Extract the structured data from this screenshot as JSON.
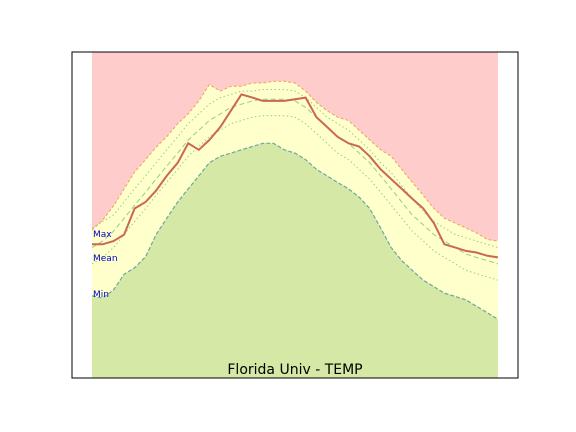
{
  "chart_data": {
    "type": "area",
    "title": "Florida Univ - TEMP",
    "xlabel": "",
    "ylabel": "",
    "xlim": [
      0,
      1
    ],
    "ylim": [
      0,
      1
    ],
    "grid": false,
    "legend": "none",
    "band_labels": {
      "max": "Max",
      "mean": "Mean",
      "min": "Min"
    },
    "colors": {
      "above_max": "#ffcccc",
      "max_to_min": "#ffffcc",
      "below_min": "#d5e8a5",
      "max_line": "#f0a060",
      "min_line": "#6aa9a0",
      "mean_line": "#cc6655",
      "mean_band": "#99cc88",
      "label": "#0000cc"
    },
    "x": [
      0,
      0.026,
      0.053,
      0.079,
      0.105,
      0.132,
      0.158,
      0.184,
      0.211,
      0.237,
      0.263,
      0.289,
      0.316,
      0.342,
      0.368,
      0.395,
      0.421,
      0.447,
      0.474,
      0.5,
      0.526,
      0.553,
      0.579,
      0.605,
      0.632,
      0.658,
      0.684,
      0.711,
      0.737,
      0.763,
      0.789,
      0.816,
      0.842,
      0.868,
      0.895,
      0.921,
      0.947,
      0.974,
      1
    ],
    "series": [
      {
        "name": "max",
        "values": [
          0.454,
          0.484,
          0.528,
          0.58,
          0.632,
          0.67,
          0.708,
          0.74,
          0.78,
          0.81,
          0.85,
          0.9,
          0.88,
          0.895,
          0.895,
          0.905,
          0.905,
          0.91,
          0.91,
          0.905,
          0.88,
          0.845,
          0.82,
          0.8,
          0.79,
          0.76,
          0.73,
          0.7,
          0.68,
          0.64,
          0.6,
          0.56,
          0.52,
          0.49,
          0.475,
          0.46,
          0.445,
          0.425,
          0.42
        ]
      },
      {
        "name": "mean",
        "values": [
          0.41,
          0.41,
          0.42,
          0.44,
          0.52,
          0.54,
          0.575,
          0.62,
          0.66,
          0.72,
          0.7,
          0.73,
          0.77,
          0.82,
          0.87,
          0.86,
          0.85,
          0.85,
          0.85,
          0.855,
          0.86,
          0.8,
          0.77,
          0.74,
          0.72,
          0.71,
          0.68,
          0.64,
          0.61,
          0.58,
          0.55,
          0.52,
          0.475,
          0.41,
          0.4,
          0.39,
          0.385,
          0.375,
          0.37
        ]
      },
      {
        "name": "min",
        "values": [
          0.252,
          0.245,
          0.27,
          0.318,
          0.338,
          0.372,
          0.44,
          0.49,
          0.54,
          0.58,
          0.62,
          0.66,
          0.68,
          0.69,
          0.7,
          0.71,
          0.72,
          0.72,
          0.7,
          0.69,
          0.67,
          0.64,
          0.62,
          0.6,
          0.58,
          0.555,
          0.52,
          0.46,
          0.4,
          0.36,
          0.33,
          0.3,
          0.28,
          0.26,
          0.25,
          0.24,
          0.22,
          0.2,
          0.18
        ]
      },
      {
        "name": "mean_upper",
        "values": [
          0.46,
          0.48,
          0.5,
          0.54,
          0.58,
          0.62,
          0.66,
          0.7,
          0.74,
          0.78,
          0.81,
          0.84,
          0.86,
          0.87,
          0.88,
          0.88,
          0.885,
          0.885,
          0.885,
          0.88,
          0.86,
          0.83,
          0.8,
          0.78,
          0.76,
          0.73,
          0.7,
          0.66,
          0.63,
          0.59,
          0.55,
          0.51,
          0.48,
          0.46,
          0.44,
          0.43,
          0.42,
          0.41,
          0.4
        ]
      },
      {
        "name": "mean_mid",
        "values": [
          0.4,
          0.42,
          0.45,
          0.49,
          0.53,
          0.57,
          0.61,
          0.65,
          0.69,
          0.73,
          0.76,
          0.79,
          0.81,
          0.83,
          0.84,
          0.85,
          0.855,
          0.855,
          0.855,
          0.85,
          0.83,
          0.8,
          0.77,
          0.74,
          0.72,
          0.69,
          0.66,
          0.62,
          0.58,
          0.54,
          0.5,
          0.47,
          0.44,
          0.42,
          0.4,
          0.38,
          0.37,
          0.36,
          0.35
        ]
      },
      {
        "name": "mean_lower",
        "values": [
          0.35,
          0.37,
          0.4,
          0.44,
          0.48,
          0.52,
          0.56,
          0.6,
          0.64,
          0.68,
          0.71,
          0.74,
          0.76,
          0.78,
          0.79,
          0.8,
          0.805,
          0.805,
          0.805,
          0.8,
          0.78,
          0.75,
          0.72,
          0.69,
          0.67,
          0.64,
          0.61,
          0.57,
          0.53,
          0.49,
          0.45,
          0.42,
          0.39,
          0.37,
          0.35,
          0.33,
          0.32,
          0.31,
          0.3
        ]
      }
    ]
  }
}
